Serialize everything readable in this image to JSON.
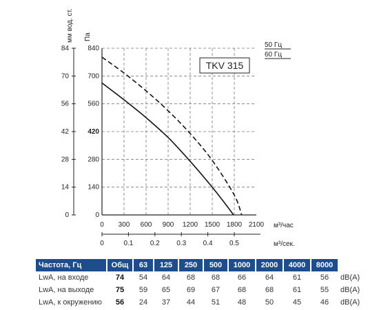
{
  "chart_data": {
    "type": "line",
    "model_label": "TKV 315",
    "ylabel_left": "мм вод. ст.",
    "ylabel_right": "Па",
    "xlabel_m3h": "м³/час",
    "xlabel_m3s": "м³/сек.",
    "yticks_mm": [
      "84",
      "70",
      "56",
      "42",
      "28",
      "14",
      "0"
    ],
    "yticks_pa": [
      "840",
      "700",
      "560",
      "420",
      "280",
      "140",
      "0"
    ],
    "xticks_m3h": [
      "0",
      "300",
      "600",
      "900",
      "1200",
      "1500",
      "1800",
      "2100"
    ],
    "xticks_m3s": [
      "0",
      "0.1",
      "0.2",
      "0.3",
      "0.4",
      "0.5"
    ],
    "xlim_m3h": [
      0,
      2100
    ],
    "ylim_pa": [
      0,
      840
    ],
    "grid": true,
    "series": [
      {
        "name": "50 Гц",
        "style": "solid",
        "x": [
          0,
          300,
          600,
          900,
          1200,
          1500,
          1700,
          1790
        ],
        "y": [
          665,
          580,
          490,
          390,
          270,
          140,
          45,
          0
        ]
      },
      {
        "name": "60 Гц",
        "style": "dashed",
        "x": [
          0,
          300,
          600,
          900,
          1200,
          1500,
          1800,
          1900
        ],
        "y": [
          795,
          715,
          625,
          525,
          410,
          275,
          100,
          0
        ]
      }
    ]
  },
  "table": {
    "header": [
      "Частота, Гц",
      "Общ",
      "63",
      "125",
      "250",
      "500",
      "1000",
      "2000",
      "4000",
      "8000"
    ],
    "rows": [
      {
        "label": "LwA, на входе",
        "total": "74",
        "values": [
          "54",
          "64",
          "68",
          "68",
          "66",
          "64",
          "61",
          "56"
        ],
        "unit": "dB(A)"
      },
      {
        "label": "LwA, на выходе",
        "total": "75",
        "values": [
          "59",
          "65",
          "69",
          "67",
          "68",
          "68",
          "61",
          "55"
        ],
        "unit": "dB(A)"
      },
      {
        "label": "LwA, к окружению",
        "total": "56",
        "values": [
          "24",
          "37",
          "44",
          "51",
          "48",
          "50",
          "45",
          "46"
        ],
        "unit": "dB(A)"
      }
    ]
  }
}
